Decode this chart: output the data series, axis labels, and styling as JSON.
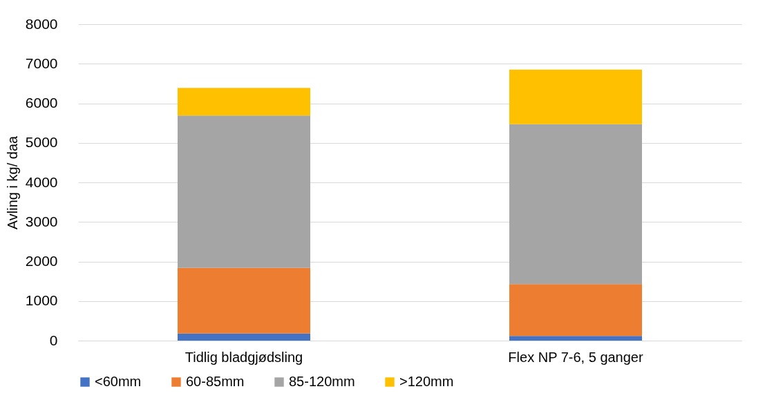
{
  "chart_data": {
    "type": "bar",
    "stacked": true,
    "ylabel": "Avling i kg/ daa",
    "categories": [
      "Tidlig bladgjødsling",
      "Flex NP 7-6, 5 ganger"
    ],
    "series": [
      {
        "name": "<60mm",
        "color": "#4472c4",
        "values": [
          180,
          120
        ]
      },
      {
        "name": "60-85mm",
        "color": "#ed7d31",
        "values": [
          1660,
          1310
        ]
      },
      {
        "name": "85-120mm",
        "color": "#a5a5a5",
        "values": [
          3850,
          4040
        ]
      },
      {
        "name": ">120mm",
        "color": "#ffc000",
        "values": [
          700,
          1380
        ]
      }
    ],
    "ylim": [
      0,
      8000
    ],
    "yticks": [
      0,
      1000,
      2000,
      3000,
      4000,
      5000,
      6000,
      7000,
      8000
    ],
    "grid": "y",
    "legend": "bottom"
  }
}
